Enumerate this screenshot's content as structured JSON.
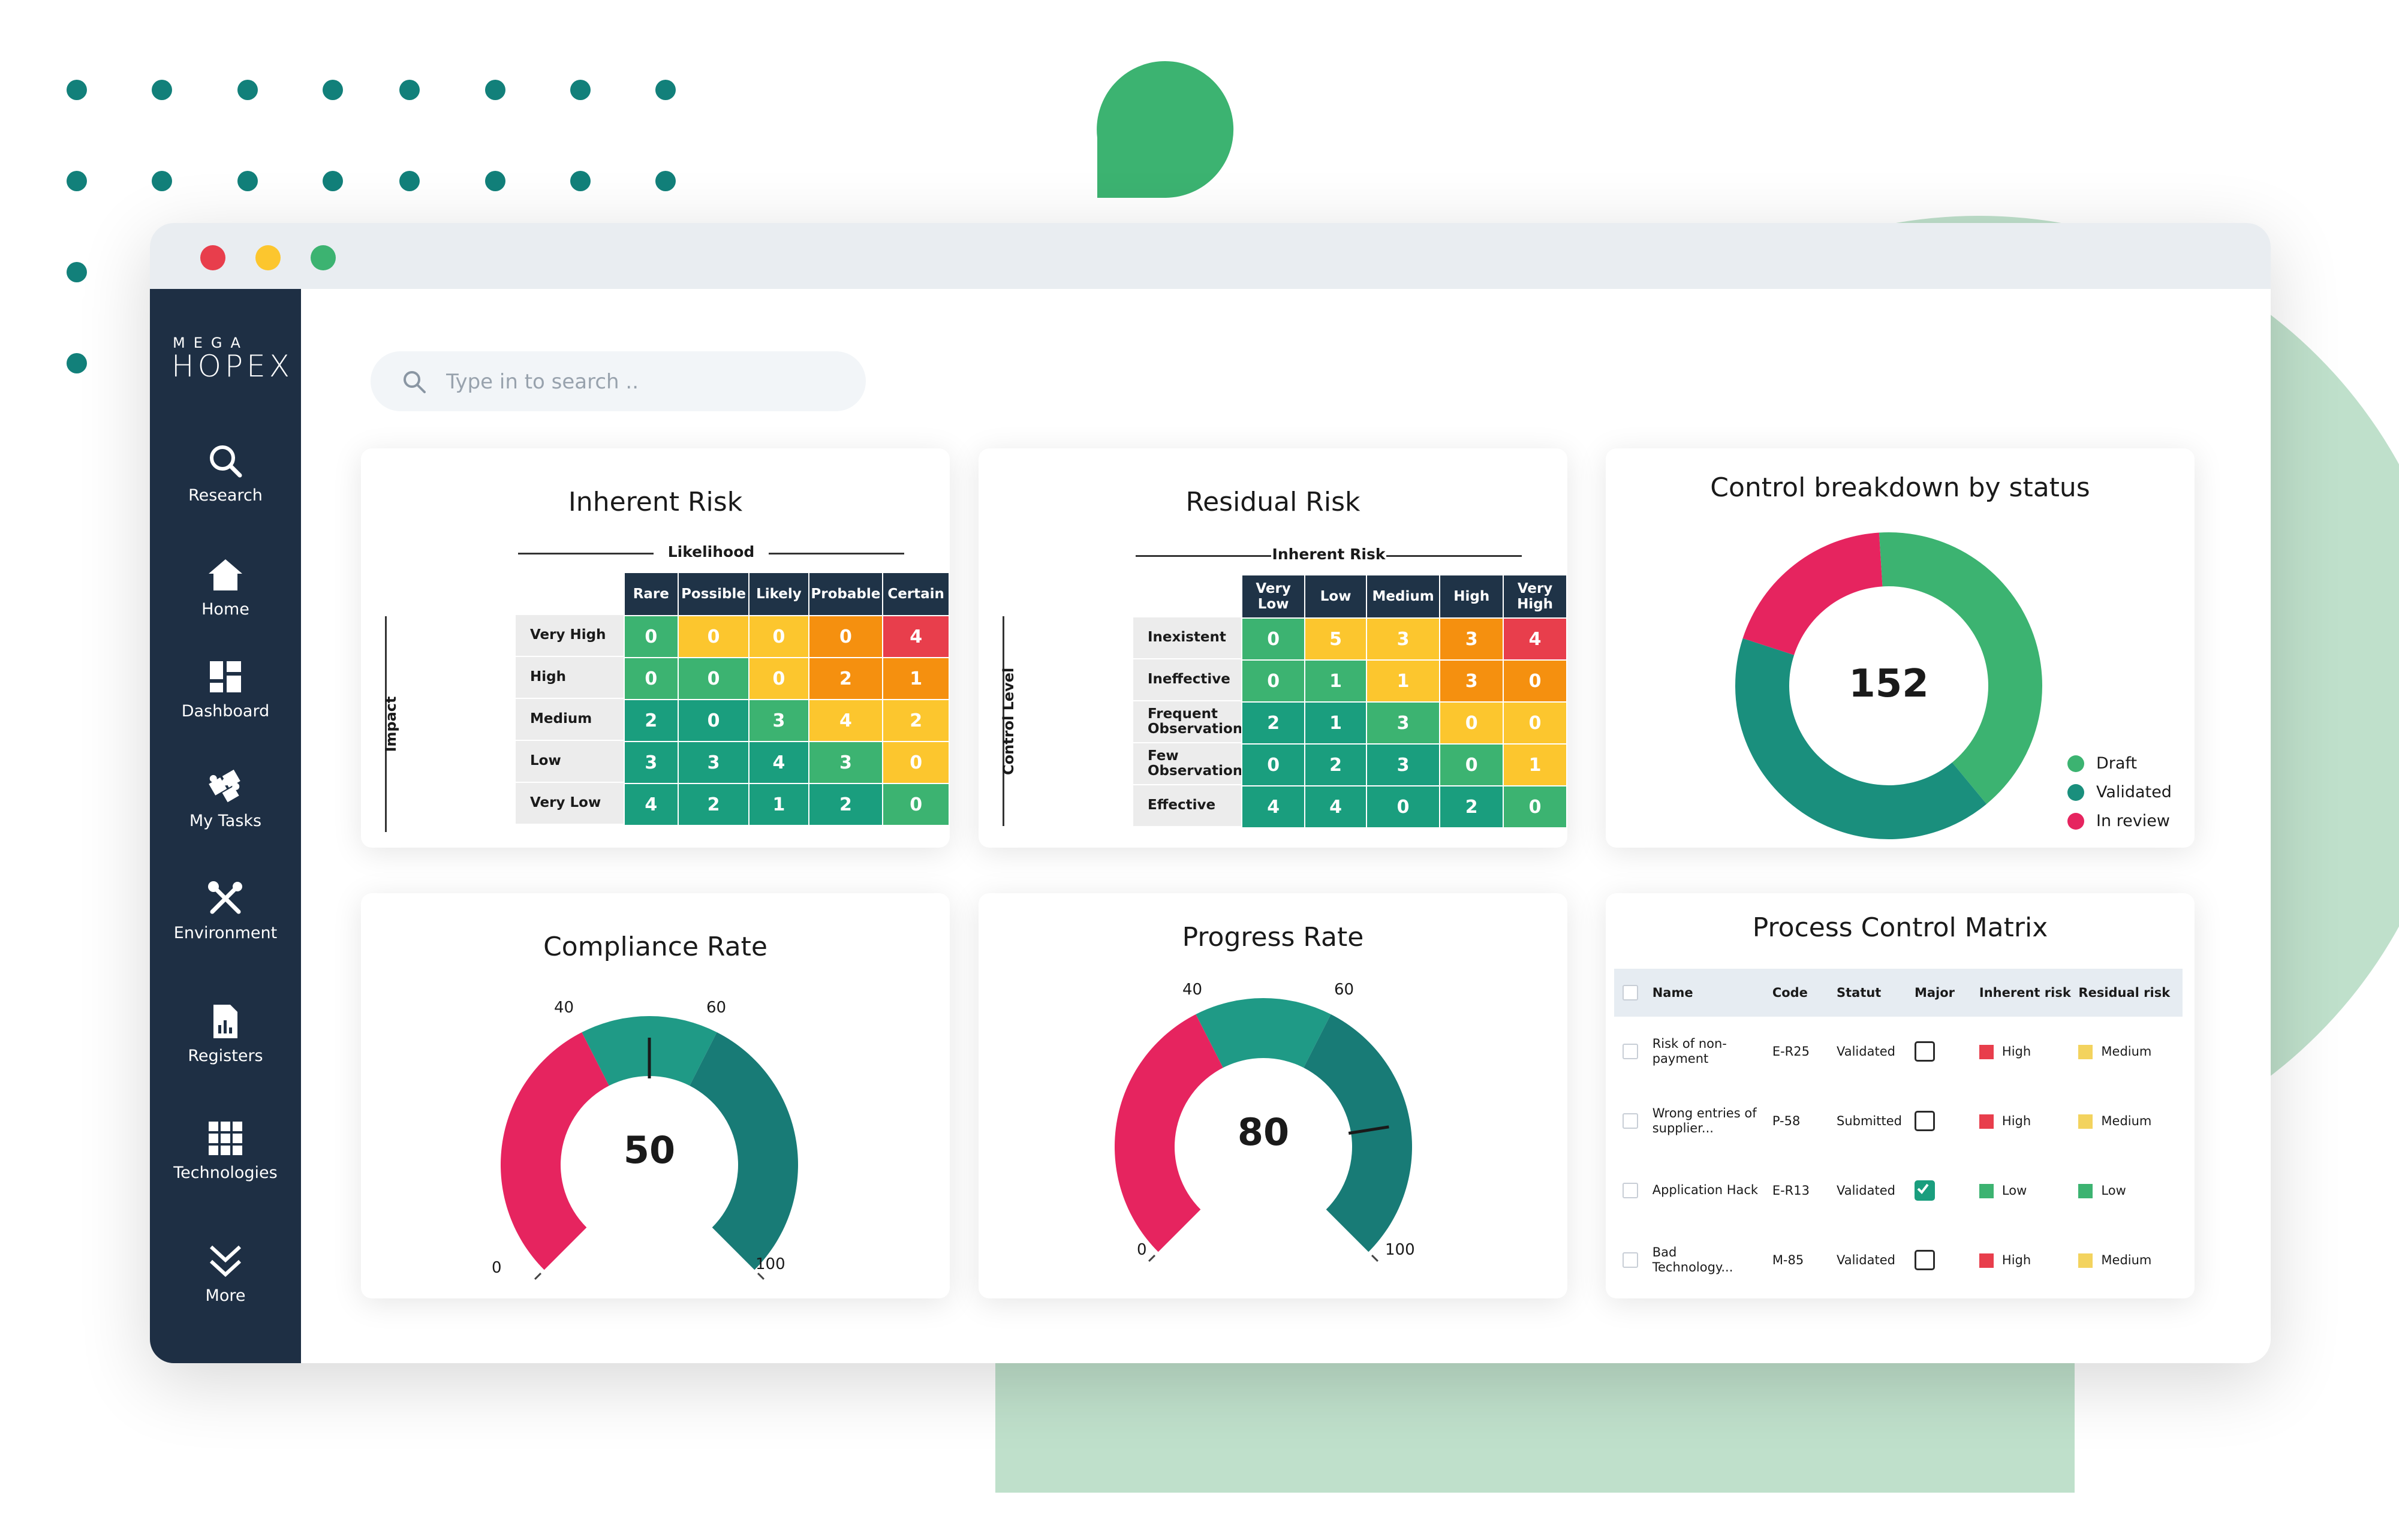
{
  "app": {
    "logo_small": "MEGA",
    "logo_big": "HOPEX"
  },
  "search": {
    "placeholder": "Type in to search .."
  },
  "sidebar": {
    "items": [
      {
        "label": "Research",
        "icon": "search-icon"
      },
      {
        "label": "Home",
        "icon": "home-icon"
      },
      {
        "label": "Dashboard",
        "icon": "dashboard-icon"
      },
      {
        "label": "My Tasks",
        "icon": "puzzle-icon"
      },
      {
        "label": "Environment",
        "icon": "tools-icon"
      },
      {
        "label": "Registers",
        "icon": "register-icon"
      },
      {
        "label": "Technologies",
        "icon": "grid-icon"
      },
      {
        "label": "More",
        "icon": "chevron-double-down-icon"
      }
    ]
  },
  "colors": {
    "green": "#3cb371",
    "teal": "#1a9e7e",
    "yellow": "#fcc62e",
    "orange": "#f5900f",
    "red": "#e83e4c",
    "pink": "#e6245f",
    "dark_teal": "#187b76",
    "navy": "#1e2f44"
  },
  "inherent_risk": {
    "title": "Inherent Risk",
    "x_axis": "Likelihood",
    "y_axis": "Impact",
    "columns": [
      "Rare",
      "Possible",
      "Likely",
      "Probable",
      "Certain"
    ],
    "rows": [
      {
        "label": "Very High",
        "values": [
          "0",
          "0",
          "0",
          "0",
          "4"
        ],
        "colors": [
          "green",
          "yellow",
          "yellow",
          "orange",
          "red"
        ]
      },
      {
        "label": "High",
        "values": [
          "0",
          "0",
          "0",
          "2",
          "1"
        ],
        "colors": [
          "green",
          "green",
          "yellow",
          "orange",
          "orange"
        ]
      },
      {
        "label": "Medium",
        "values": [
          "2",
          "0",
          "3",
          "4",
          "2"
        ],
        "colors": [
          "teal",
          "teal",
          "green",
          "yellow",
          "yellow"
        ]
      },
      {
        "label": "Low",
        "values": [
          "3",
          "3",
          "4",
          "3",
          "0"
        ],
        "colors": [
          "teal",
          "teal",
          "teal",
          "green",
          "yellow"
        ]
      },
      {
        "label": "Very Low",
        "values": [
          "4",
          "2",
          "1",
          "2",
          "0"
        ],
        "colors": [
          "teal",
          "teal",
          "teal",
          "teal",
          "green"
        ]
      }
    ]
  },
  "residual_risk": {
    "title": "Residual Risk",
    "x_axis": "Inherent Risk",
    "y_axis": "Control Level",
    "columns": [
      "Very Low",
      "Low",
      "Medium",
      "High",
      "Very High"
    ],
    "rows": [
      {
        "label": "Inexistent",
        "values": [
          "0",
          "5",
          "3",
          "3",
          "4"
        ],
        "colors": [
          "green",
          "yellow",
          "yellow",
          "orange",
          "red"
        ]
      },
      {
        "label": "Ineffective",
        "values": [
          "0",
          "1",
          "1",
          "3",
          "0"
        ],
        "colors": [
          "green",
          "green",
          "yellow",
          "orange",
          "orange"
        ]
      },
      {
        "label": "Frequent Observation",
        "values": [
          "2",
          "1",
          "3",
          "0",
          "0"
        ],
        "colors": [
          "teal",
          "teal",
          "green",
          "yellow",
          "yellow"
        ]
      },
      {
        "label": "Few Observations",
        "values": [
          "0",
          "2",
          "3",
          "0",
          "1"
        ],
        "colors": [
          "teal",
          "teal",
          "teal",
          "green",
          "yellow"
        ]
      },
      {
        "label": "Effective",
        "values": [
          "4",
          "4",
          "0",
          "2",
          "0"
        ],
        "colors": [
          "teal",
          "teal",
          "teal",
          "teal",
          "green"
        ]
      }
    ]
  },
  "control_breakdown": {
    "title": "Control breakdown by status",
    "total": "152",
    "chart_data": {
      "type": "pie",
      "series": [
        {
          "name": "Draft",
          "value": 0.4,
          "color": "#3cb371"
        },
        {
          "name": "Validated",
          "value": 0.41,
          "color": "#1a8f7d"
        },
        {
          "name": "In review",
          "value": 0.19,
          "color": "#e6245f"
        }
      ],
      "legend_position": "bottom-right"
    }
  },
  "compliance_rate": {
    "title": "Compliance Rate",
    "value": "50",
    "ticks": [
      "0",
      "40",
      "60",
      "100"
    ],
    "chart_data": {
      "type": "gauge",
      "value": 50,
      "range": [
        0,
        100
      ],
      "bands": [
        {
          "from": 0,
          "to": 40,
          "color": "#e6245f"
        },
        {
          "from": 40,
          "to": 60,
          "color": "#1f9a86"
        },
        {
          "from": 60,
          "to": 100,
          "color": "#187b76"
        }
      ]
    }
  },
  "progress_rate": {
    "title": "Progress Rate",
    "value": "80",
    "ticks": [
      "0",
      "40",
      "60",
      "100"
    ],
    "chart_data": {
      "type": "gauge",
      "value": 80,
      "range": [
        0,
        100
      ],
      "bands": [
        {
          "from": 0,
          "to": 40,
          "color": "#e6245f"
        },
        {
          "from": 40,
          "to": 60,
          "color": "#1f9a86"
        },
        {
          "from": 60,
          "to": 100,
          "color": "#187b76"
        }
      ]
    }
  },
  "process_control_matrix": {
    "title": "Process Control Matrix",
    "headers": [
      "Name",
      "Code",
      "Statut",
      "Major",
      "Inherent risk",
      "Residual risk"
    ],
    "rows": [
      {
        "name": "Risk of non-payment",
        "code": "E-R25",
        "statut": "Validated",
        "major": false,
        "inherent": "High",
        "inherent_color": "#e83e4c",
        "residual": "Medium",
        "residual_color": "#f3d35e"
      },
      {
        "name": "Wrong entries of supplier...",
        "code": "P-58",
        "statut": "Submitted",
        "major": false,
        "inherent": "High",
        "inherent_color": "#e83e4c",
        "residual": "Medium",
        "residual_color": "#f3d35e"
      },
      {
        "name": "Application Hack",
        "code": "E-R13",
        "statut": "Validated",
        "major": true,
        "inherent": "Low",
        "inherent_color": "#3cb371",
        "residual": "Low",
        "residual_color": "#3cb371"
      },
      {
        "name": "Bad Technology...",
        "code": "M-85",
        "statut": "Validated",
        "major": false,
        "inherent": "High",
        "inherent_color": "#e83e4c",
        "residual": "Medium",
        "residual_color": "#f3d35e"
      }
    ]
  }
}
